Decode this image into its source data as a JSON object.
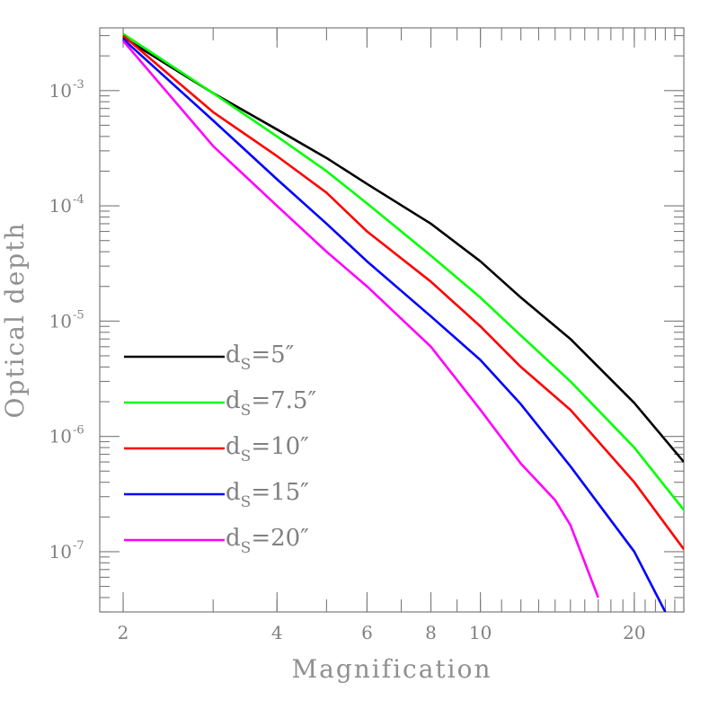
{
  "chart_data": {
    "type": "line",
    "title": "",
    "xlabel": "Magnification",
    "ylabel": "Optical depth",
    "xscale": "log",
    "yscale": "log",
    "xlim": [
      1.8,
      25
    ],
    "ylim": [
      3e-08,
      0.0035
    ],
    "x_ticks": [
      {
        "value": 2,
        "label": "2"
      },
      {
        "value": 4,
        "label": "4"
      },
      {
        "value": 6,
        "label": "6"
      },
      {
        "value": 8,
        "label": "8"
      },
      {
        "value": 10,
        "label": "10"
      },
      {
        "value": 20,
        "label": "20"
      }
    ],
    "y_ticks": [
      {
        "value": 0.001,
        "base": "10",
        "exp": "-3"
      },
      {
        "value": 0.0001,
        "base": "10",
        "exp": "-4"
      },
      {
        "value": 1e-05,
        "base": "10",
        "exp": "-5"
      },
      {
        "value": 1e-06,
        "base": "10",
        "exp": "-6"
      },
      {
        "value": 1e-07,
        "base": "10",
        "exp": "-7"
      }
    ],
    "legend_position": "bottom-left",
    "grid": false,
    "series": [
      {
        "label_main": "d",
        "label_sub": "S",
        "label_rest": "=5″",
        "color": "#000000",
        "x": [
          2,
          3,
          4,
          5,
          6,
          8,
          10,
          12,
          15,
          20,
          25
        ],
        "y": [
          0.0029,
          0.00095,
          0.00046,
          0.00026,
          0.000155,
          7e-05,
          3.3e-05,
          1.6e-05,
          7e-06,
          1.95e-06,
          6e-07
        ]
      },
      {
        "label_main": "d",
        "label_sub": "S",
        "label_rest": "=7.5″",
        "color": "#00ff00",
        "x": [
          2,
          3,
          4,
          5,
          6,
          8,
          10,
          12,
          15,
          20,
          25
        ],
        "y": [
          0.0031,
          0.00095,
          0.0004,
          0.0002,
          0.000105,
          3.7e-05,
          1.6e-05,
          7.5e-06,
          3e-06,
          8e-07,
          2.3e-07
        ]
      },
      {
        "label_main": "d",
        "label_sub": "S",
        "label_rest": "=10″",
        "color": "#ff0000",
        "x": [
          2,
          3,
          4,
          5,
          6,
          8,
          10,
          12,
          15,
          20,
          25
        ],
        "y": [
          0.003,
          0.00065,
          0.00027,
          0.00013,
          6e-05,
          2.2e-05,
          9e-06,
          4e-06,
          1.7e-06,
          4e-07,
          1.05e-07
        ]
      },
      {
        "label_main": "d",
        "label_sub": "S",
        "label_rest": "=15″",
        "color": "#0000ff",
        "x": [
          2,
          3,
          4,
          5,
          6,
          8,
          10,
          12,
          15,
          20,
          23
        ],
        "y": [
          0.0028,
          0.00055,
          0.00017,
          7e-05,
          3.3e-05,
          1.1e-05,
          4.6e-06,
          1.9e-06,
          5.5e-07,
          1e-07,
          3e-08
        ]
      },
      {
        "label_main": "d",
        "label_sub": "S",
        "label_rest": "=20″",
        "color": "#ff00ff",
        "x": [
          2,
          3,
          4,
          5,
          6,
          8,
          10,
          12,
          14,
          15,
          17
        ],
        "y": [
          0.0027,
          0.00033,
          0.0001,
          4e-05,
          2e-05,
          6e-06,
          1.7e-06,
          5.8e-07,
          2.8e-07,
          1.7e-07,
          4e-08
        ]
      }
    ]
  }
}
